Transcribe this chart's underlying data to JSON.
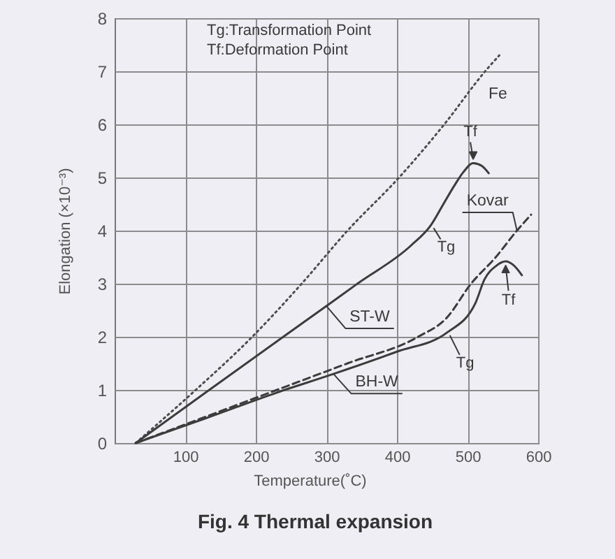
{
  "chart_data": {
    "type": "line",
    "title": "Fig. 4 Thermal expansion",
    "xlabel": "Temperature(˚C)",
    "ylabel": "Elongation (×10⁻³)",
    "annotations": [
      "Tg:Transformation Point",
      "Tf:Deformation Point",
      {
        "text": "Tf",
        "x": 508,
        "y": 5.27
      },
      {
        "text": "Tg",
        "x": 448,
        "y": 4.1
      },
      {
        "text": "Tf",
        "x": 554,
        "y": 3.42
      },
      {
        "text": "Tg",
        "x": 471,
        "y": 2.08
      }
    ],
    "xlim": [
      0,
      600
    ],
    "xticks": [
      100,
      200,
      300,
      400,
      500,
      600
    ],
    "ylim": [
      0,
      8
    ],
    "yticks": [
      0,
      1,
      2,
      3,
      4,
      5,
      6,
      7,
      8
    ],
    "grid": true,
    "series": [
      {
        "name": "Fe",
        "color": "#4d4d4d",
        "line_style": "dotted",
        "x": [
          30,
          115,
          195,
          265,
          330,
          403,
          467,
          525,
          545
        ],
        "values": [
          0,
          1,
          2,
          3,
          4,
          5,
          6,
          7,
          7.3
        ]
      },
      {
        "name": "ST-W",
        "color": "#3c3c3c",
        "line_style": "solid",
        "x": [
          30,
          130,
          240,
          300,
          345,
          420,
          448,
          465,
          481,
          494,
          508,
          520,
          530
        ],
        "values": [
          0,
          0.96,
          2.01,
          2.58,
          3.01,
          3.72,
          4.1,
          4.48,
          4.84,
          5.1,
          5.27,
          5.22,
          5.08
        ]
      },
      {
        "name": "Kovar",
        "color": "#3c3c3c",
        "line_style": "dashed",
        "x": [
          30,
          130,
          230,
          330,
          430,
          470,
          505,
          540,
          570,
          590
        ],
        "values": [
          0,
          0.5,
          1,
          1.5,
          2,
          2.35,
          3,
          3.5,
          4,
          4.3
        ]
      },
      {
        "name": "BH-W",
        "color": "#3c3c3c",
        "line_style": "solid",
        "x": [
          30,
          130,
          230,
          310,
          400,
          471,
          511,
          524,
          541,
          554,
          565,
          577
        ],
        "values": [
          0,
          0.47,
          0.95,
          1.3,
          1.72,
          2.08,
          2.63,
          3.08,
          3.34,
          3.42,
          3.35,
          3.16
        ]
      }
    ]
  }
}
